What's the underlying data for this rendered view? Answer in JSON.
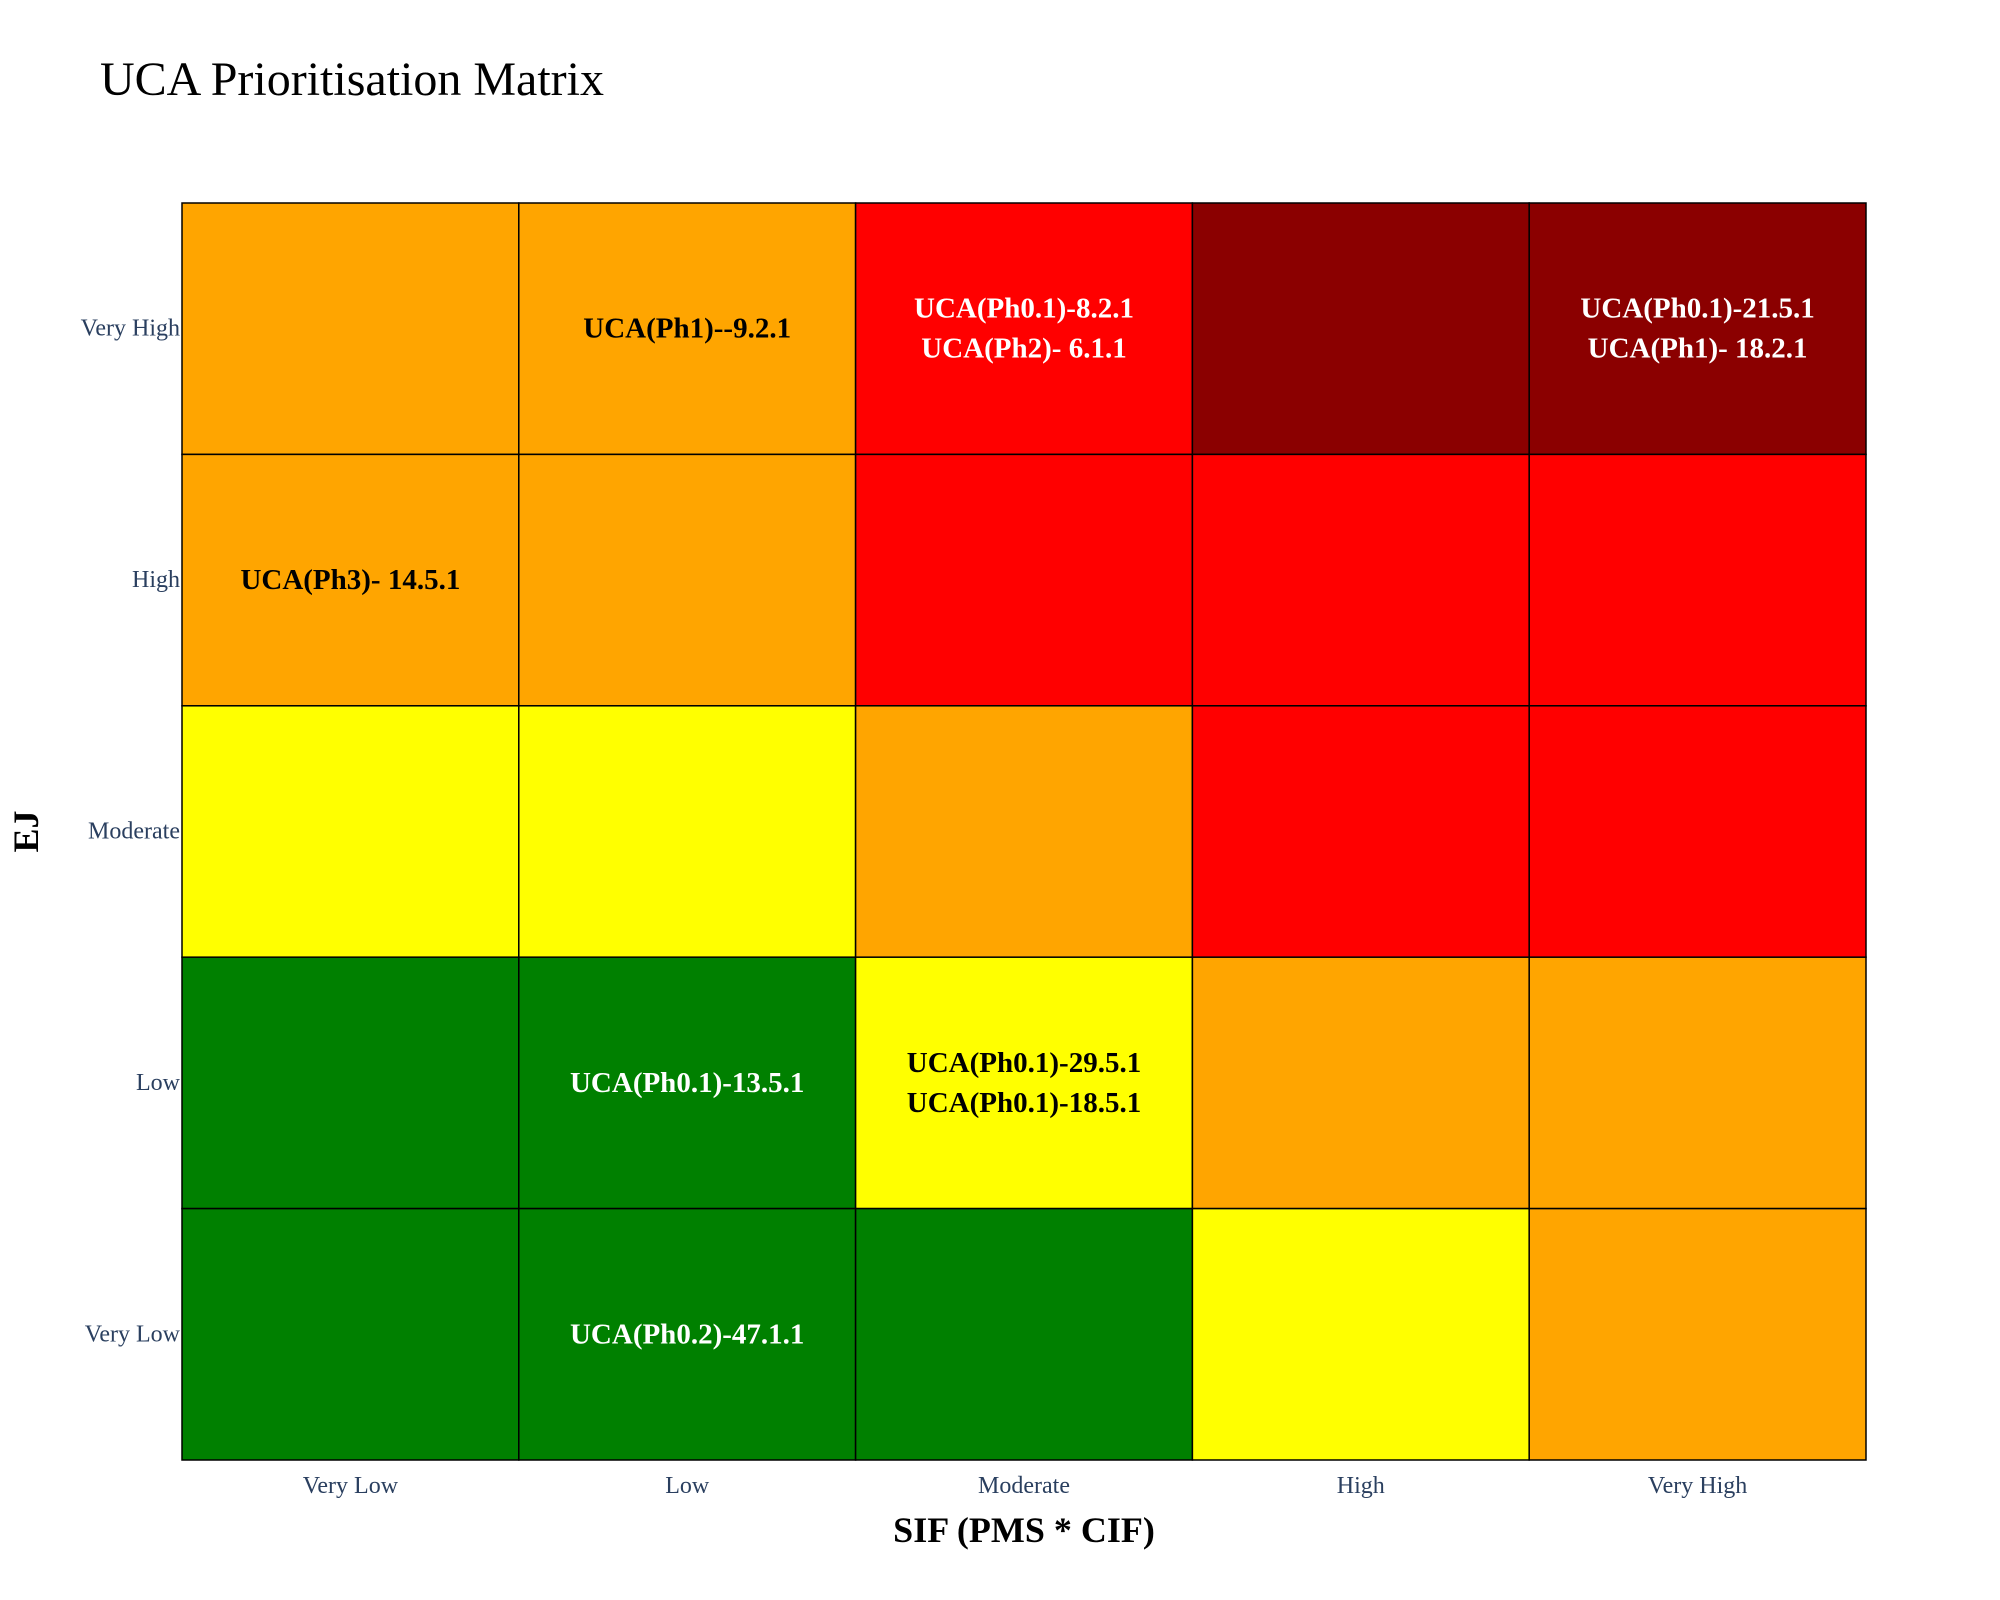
{
  "chart_data": {
    "type": "heatmap",
    "title": "UCA Prioritisation Matrix",
    "xlabel": "SIF (PMS * CIF)",
    "ylabel": "EJ",
    "x_categories": [
      "Very Low",
      "Low",
      "Moderate",
      "High",
      "Very High"
    ],
    "y_categories": [
      "Very Low",
      "Low",
      "Moderate",
      "High",
      "Very High"
    ],
    "colors": {
      "green": "#008000",
      "yellow": "#ffff00",
      "orange": "#ffa500",
      "red": "#ff0000",
      "darkred": "#8b0000"
    },
    "cells": [
      {
        "x": "Very Low",
        "y": "Very High",
        "color": "orange",
        "labels": []
      },
      {
        "x": "Low",
        "y": "Very High",
        "color": "orange",
        "labels": [
          "UCA(Ph1)--9.2.1"
        ]
      },
      {
        "x": "Moderate",
        "y": "Very High",
        "color": "red",
        "labels": [
          "UCA(Ph0.1)-8.2.1",
          "UCA(Ph2)- 6.1.1"
        ]
      },
      {
        "x": "High",
        "y": "Very High",
        "color": "darkred",
        "labels": []
      },
      {
        "x": "Very High",
        "y": "Very High",
        "color": "darkred",
        "labels": [
          "UCA(Ph0.1)-21.5.1",
          "UCA(Ph1)- 18.2.1"
        ]
      },
      {
        "x": "Very Low",
        "y": "High",
        "color": "orange",
        "labels": [
          "UCA(Ph3)- 14.5.1"
        ]
      },
      {
        "x": "Low",
        "y": "High",
        "color": "orange",
        "labels": []
      },
      {
        "x": "Moderate",
        "y": "High",
        "color": "red",
        "labels": []
      },
      {
        "x": "High",
        "y": "High",
        "color": "red",
        "labels": []
      },
      {
        "x": "Very High",
        "y": "High",
        "color": "red",
        "labels": []
      },
      {
        "x": "Very Low",
        "y": "Moderate",
        "color": "yellow",
        "labels": []
      },
      {
        "x": "Low",
        "y": "Moderate",
        "color": "yellow",
        "labels": []
      },
      {
        "x": "Moderate",
        "y": "Moderate",
        "color": "orange",
        "labels": []
      },
      {
        "x": "High",
        "y": "Moderate",
        "color": "red",
        "labels": []
      },
      {
        "x": "Very High",
        "y": "Moderate",
        "color": "red",
        "labels": []
      },
      {
        "x": "Very Low",
        "y": "Low",
        "color": "green",
        "labels": []
      },
      {
        "x": "Low",
        "y": "Low",
        "color": "green",
        "labels": [
          "UCA(Ph0.1)-13.5.1"
        ]
      },
      {
        "x": "Moderate",
        "y": "Low",
        "color": "yellow",
        "labels": [
          "UCA(Ph0.1)-29.5.1",
          "UCA(Ph0.1)-18.5.1"
        ]
      },
      {
        "x": "High",
        "y": "Low",
        "color": "orange",
        "labels": []
      },
      {
        "x": "Very High",
        "y": "Low",
        "color": "orange",
        "labels": []
      },
      {
        "x": "Very Low",
        "y": "Very Low",
        "color": "green",
        "labels": []
      },
      {
        "x": "Low",
        "y": "Very Low",
        "color": "green",
        "labels": [
          "UCA(Ph0.2)-47.1.1"
        ]
      },
      {
        "x": "Moderate",
        "y": "Very Low",
        "color": "green",
        "labels": []
      },
      {
        "x": "High",
        "y": "Very Low",
        "color": "yellow",
        "labels": []
      },
      {
        "x": "Very High",
        "y": "Very Low",
        "color": "orange",
        "labels": []
      }
    ]
  }
}
